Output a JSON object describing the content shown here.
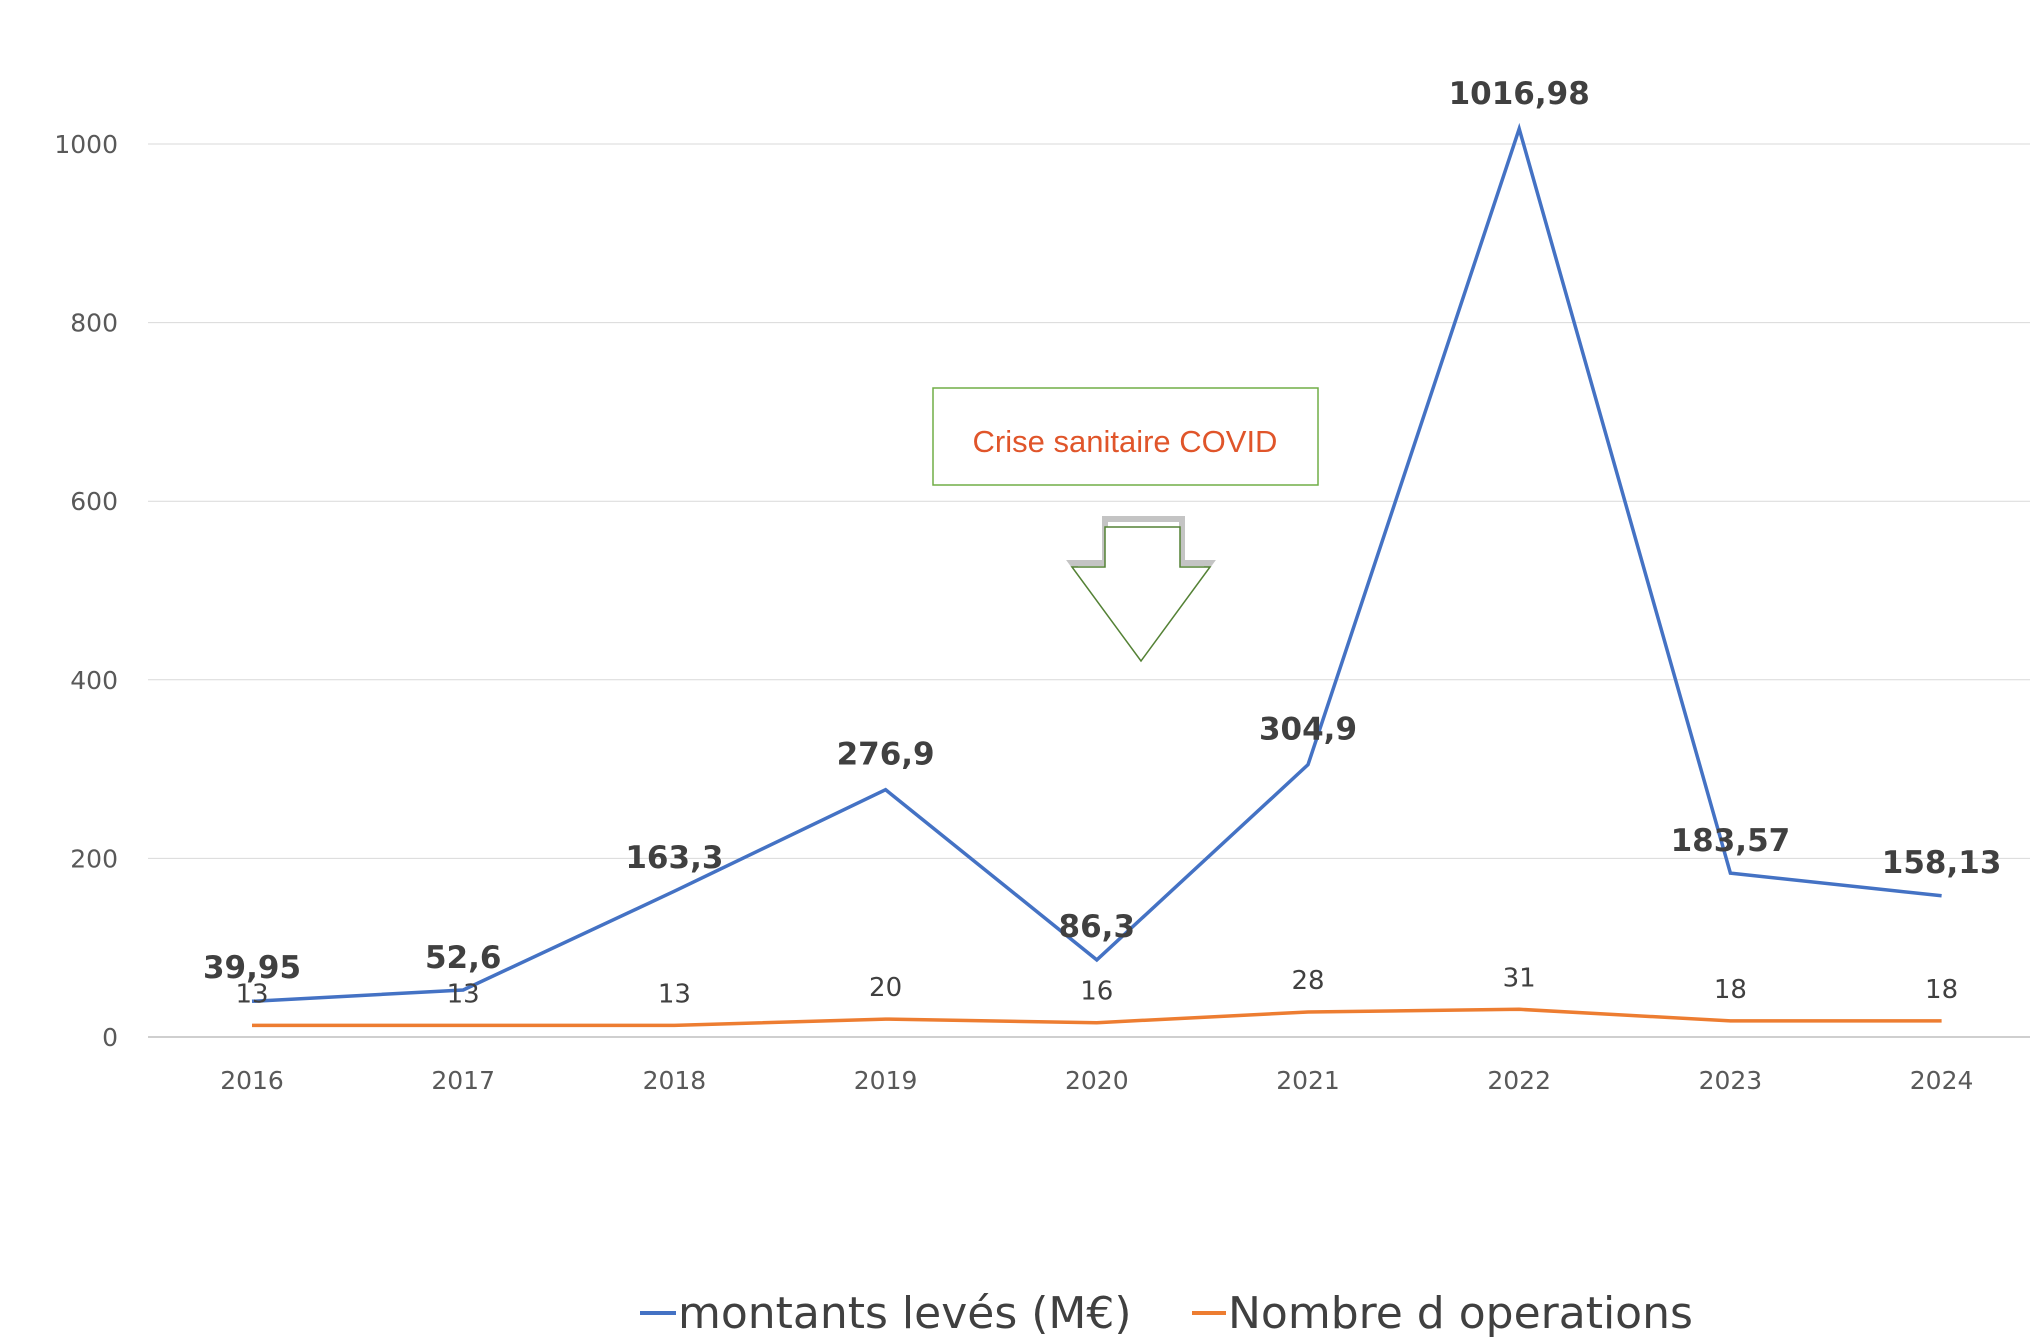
{
  "chart_data": {
    "type": "line",
    "categories": [
      "2016",
      "2017",
      "2018",
      "2019",
      "2020",
      "2021",
      "2022",
      "2023",
      "2024"
    ],
    "ylim": [
      0,
      1000
    ],
    "yticks": [
      "0",
      "200",
      "400",
      "600",
      "800",
      "1000"
    ],
    "grid": true,
    "legend_position": "bottom",
    "series": [
      {
        "name": "montants levés (M€)",
        "color": "#4472c4",
        "values": [
          39.95,
          52.6,
          163.3,
          276.9,
          86.3,
          304.9,
          1016.98,
          183.57,
          158.13
        ],
        "labels": [
          "39,95",
          "52,6",
          "163,3",
          "276,9",
          "86,3",
          "304,9",
          "1016,98",
          "183,57",
          "158,13"
        ]
      },
      {
        "name": "Nombre d operations",
        "color": "#ed7d31",
        "values": [
          13,
          13,
          13,
          20,
          16,
          28,
          31,
          18,
          18
        ],
        "labels": [
          "13",
          "13",
          "13",
          "20",
          "16",
          "28",
          "31",
          "18",
          "18"
        ]
      }
    ],
    "annotation": {
      "text": "Crise sanitaire COVID",
      "text_color": "#e0552a",
      "border_color": "#70ad47",
      "points_to": "2020"
    }
  }
}
